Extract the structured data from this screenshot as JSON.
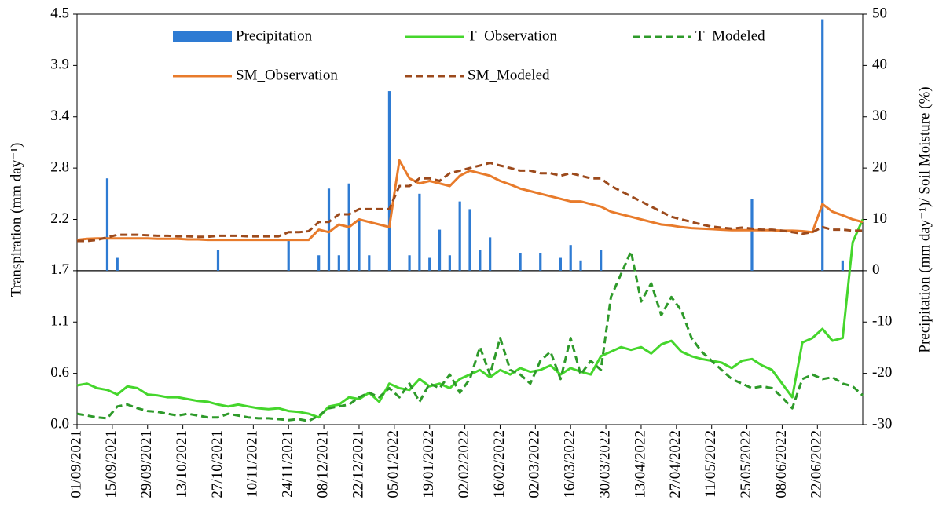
{
  "chart_data": {
    "type": "combo",
    "y_label": "Transpiration (mm day⁻¹)",
    "y2_label": "Precipitation (mm day⁻¹)/ Soil Moisture (%)",
    "x": [
      "01/09/2021",
      "05/09/2021",
      "09/09/2021",
      "13/09/2021",
      "17/09/2021",
      "21/09/2021",
      "25/09/2021",
      "29/09/2021",
      "03/10/2021",
      "07/10/2021",
      "11/10/2021",
      "15/10/2021",
      "19/10/2021",
      "23/10/2021",
      "27/10/2021",
      "31/10/2021",
      "04/11/2021",
      "08/11/2021",
      "12/11/2021",
      "16/11/2021",
      "20/11/2021",
      "24/11/2021",
      "28/11/2021",
      "02/12/2021",
      "06/12/2021",
      "10/12/2021",
      "14/12/2021",
      "18/12/2021",
      "22/12/2021",
      "26/12/2021",
      "30/12/2021",
      "03/01/2022",
      "07/01/2022",
      "11/01/2022",
      "15/01/2022",
      "19/01/2022",
      "23/01/2022",
      "27/01/2022",
      "31/01/2022",
      "04/02/2022",
      "08/02/2022",
      "12/02/2022",
      "16/02/2022",
      "20/02/2022",
      "24/02/2022",
      "28/02/2022",
      "04/03/2022",
      "08/03/2022",
      "12/03/2022",
      "16/03/2022",
      "20/03/2022",
      "24/03/2022",
      "28/03/2022",
      "01/04/2022",
      "05/04/2022",
      "09/04/2022",
      "13/04/2022",
      "17/04/2022",
      "21/04/2022",
      "25/04/2022",
      "29/04/2022",
      "03/05/2022",
      "07/05/2022",
      "11/05/2022",
      "15/05/2022",
      "19/05/2022",
      "23/05/2022",
      "27/05/2022",
      "31/05/2022",
      "04/06/2022",
      "08/06/2022",
      "12/06/2022",
      "16/06/2022",
      "20/06/2022",
      "24/06/2022",
      "28/06/2022",
      "02/07/2022",
      "06/07/2022",
      "10/07/2022"
    ],
    "series": [
      {
        "name": "Precipitation",
        "type": "bar",
        "axis": "y2",
        "color": "#2e7bd3",
        "values": [
          0,
          0,
          0,
          18,
          2.5,
          0,
          0,
          0,
          0,
          0,
          0,
          0,
          0,
          0,
          4,
          0,
          0,
          0,
          0,
          0,
          0,
          6,
          0,
          0,
          3,
          16,
          3,
          17,
          10,
          3,
          0,
          35,
          0,
          3,
          15,
          2.5,
          8,
          3,
          13.5,
          12,
          4,
          6.5,
          0,
          0,
          3.5,
          0,
          3.5,
          0,
          2.5,
          5,
          2,
          0,
          4,
          0,
          0,
          0,
          0,
          0,
          0,
          0,
          0,
          0,
          0,
          0,
          0,
          0,
          0,
          14,
          0,
          0,
          0,
          0,
          0,
          0,
          49,
          0,
          2,
          0,
          0
        ]
      },
      {
        "name": "T_Observation",
        "type": "line",
        "color": "#45d62c",
        "dashed": false,
        "values": [
          0.43,
          0.45,
          0.4,
          0.38,
          0.33,
          0.42,
          0.4,
          0.33,
          0.32,
          0.3,
          0.3,
          0.28,
          0.26,
          0.25,
          0.22,
          0.2,
          0.22,
          0.2,
          0.18,
          0.17,
          0.18,
          0.15,
          0.14,
          0.12,
          0.08,
          0.2,
          0.22,
          0.3,
          0.28,
          0.35,
          0.25,
          0.45,
          0.4,
          0.38,
          0.5,
          0.42,
          0.45,
          0.4,
          0.5,
          0.55,
          0.6,
          0.52,
          0.6,
          0.55,
          0.62,
          0.58,
          0.6,
          0.65,
          0.55,
          0.62,
          0.58,
          0.55,
          0.75,
          0.8,
          0.85,
          0.82,
          0.85,
          0.78,
          0.88,
          0.92,
          0.8,
          0.75,
          0.72,
          0.7,
          0.68,
          0.62,
          0.7,
          0.72,
          0.65,
          0.6,
          0.45,
          0.3,
          0.9,
          0.95,
          1.05,
          0.92,
          0.95,
          2.0,
          2.25
        ]
      },
      {
        "name": "T_Modeled",
        "type": "line",
        "color": "#2e9a2a",
        "dashed": true,
        "values": [
          0.12,
          0.1,
          0.08,
          0.07,
          0.2,
          0.22,
          0.18,
          0.15,
          0.14,
          0.12,
          0.1,
          0.12,
          0.1,
          0.08,
          0.08,
          0.12,
          0.1,
          0.08,
          0.07,
          0.07,
          0.06,
          0.05,
          0.06,
          0.04,
          0.1,
          0.18,
          0.2,
          0.22,
          0.3,
          0.35,
          0.3,
          0.4,
          0.3,
          0.45,
          0.25,
          0.45,
          0.4,
          0.55,
          0.35,
          0.5,
          0.85,
          0.55,
          0.95,
          0.6,
          0.55,
          0.45,
          0.7,
          0.8,
          0.5,
          0.95,
          0.55,
          0.7,
          0.6,
          1.4,
          1.65,
          1.9,
          1.35,
          1.55,
          1.2,
          1.4,
          1.25,
          0.95,
          0.8,
          0.7,
          0.6,
          0.5,
          0.45,
          0.4,
          0.42,
          0.4,
          0.3,
          0.18,
          0.5,
          0.55,
          0.5,
          0.52,
          0.45,
          0.42,
          0.32
        ]
      },
      {
        "name": "SM_Observation",
        "type": "line",
        "axis": "y2",
        "color": "#e87b2b",
        "dashed": false,
        "values": [
          6.0,
          6.2,
          6.3,
          6.3,
          6.3,
          6.3,
          6.3,
          6.3,
          6.2,
          6.2,
          6.2,
          6.1,
          6.1,
          6.0,
          6.0,
          6.0,
          6.0,
          6.0,
          6.0,
          6.0,
          6.0,
          6.0,
          6.0,
          6.0,
          8.0,
          7.5,
          9.0,
          8.5,
          10.0,
          9.5,
          9.0,
          8.5,
          21.5,
          18.0,
          17.0,
          17.5,
          17.0,
          16.5,
          18.5,
          19.5,
          19.0,
          18.5,
          17.5,
          16.8,
          16.0,
          15.5,
          15.0,
          14.5,
          14.0,
          13.5,
          13.5,
          13.0,
          12.5,
          11.5,
          11.0,
          10.5,
          10.0,
          9.5,
          9.0,
          8.8,
          8.5,
          8.3,
          8.2,
          8.1,
          8.0,
          7.9,
          7.9,
          7.9,
          7.9,
          7.9,
          7.8,
          7.8,
          7.7,
          7.5,
          13.0,
          11.5,
          10.8,
          10.0,
          9.5
        ]
      },
      {
        "name": "SM_Modeled",
        "type": "line",
        "axis": "y2",
        "color": "#9c4a1c",
        "dashed": true,
        "values": [
          5.8,
          5.8,
          6.0,
          6.5,
          7.0,
          7.0,
          7.0,
          6.9,
          6.8,
          6.8,
          6.7,
          6.7,
          6.6,
          6.6,
          6.8,
          6.8,
          6.8,
          6.7,
          6.7,
          6.7,
          6.7,
          7.5,
          7.5,
          7.7,
          9.5,
          9.5,
          11.0,
          11.0,
          12.0,
          12.0,
          12.0,
          12.0,
          16.5,
          16.5,
          18.0,
          18.0,
          17.5,
          19.0,
          19.5,
          20.0,
          20.5,
          21.0,
          20.5,
          20.0,
          19.5,
          19.5,
          19.0,
          19.0,
          18.5,
          19.0,
          18.5,
          18.0,
          18.0,
          16.5,
          15.5,
          14.5,
          13.5,
          12.5,
          11.5,
          10.5,
          10.0,
          9.5,
          9.0,
          8.6,
          8.4,
          8.2,
          8.4,
          8.2,
          8.0,
          8.0,
          7.8,
          7.5,
          7.2,
          7.5,
          8.5,
          8.0,
          8.0,
          7.8,
          7.8
        ]
      }
    ],
    "xlim": [
      "01/09/2021",
      "10/07/2022"
    ],
    "xticks": [
      "01/09/2021",
      "15/09/2021",
      "29/09/2021",
      "13/10/2021",
      "27/10/2021",
      "10/11/2021",
      "24/11/2021",
      "08/12/2021",
      "22/12/2021",
      "05/01/2022",
      "19/01/2022",
      "02/02/2022",
      "16/02/2022",
      "02/03/2022",
      "16/03/2022",
      "30/03/2022",
      "13/04/2022",
      "27/04/2022",
      "11/05/2022",
      "25/05/2022",
      "08/06/2022",
      "22/06/2022"
    ],
    "ylim": [
      0,
      4.5
    ],
    "yticks": [
      {
        "value": 0,
        "label": "0.0"
      },
      {
        "value": 0.5625,
        "label": "0.6"
      },
      {
        "value": 1.125,
        "label": "1.1"
      },
      {
        "value": 1.6875,
        "label": "1.7"
      },
      {
        "value": 2.25,
        "label": "2.2"
      },
      {
        "value": 2.8125,
        "label": "2.8"
      },
      {
        "value": 3.375,
        "label": "3.4"
      },
      {
        "value": 3.9375,
        "label": "3.9"
      },
      4.5
    ],
    "y2lim": [
      -30,
      50
    ],
    "y2ticks": [
      -30,
      -20,
      -10,
      0,
      10,
      20,
      30,
      40,
      50
    ],
    "grid": false,
    "legend": "top"
  }
}
